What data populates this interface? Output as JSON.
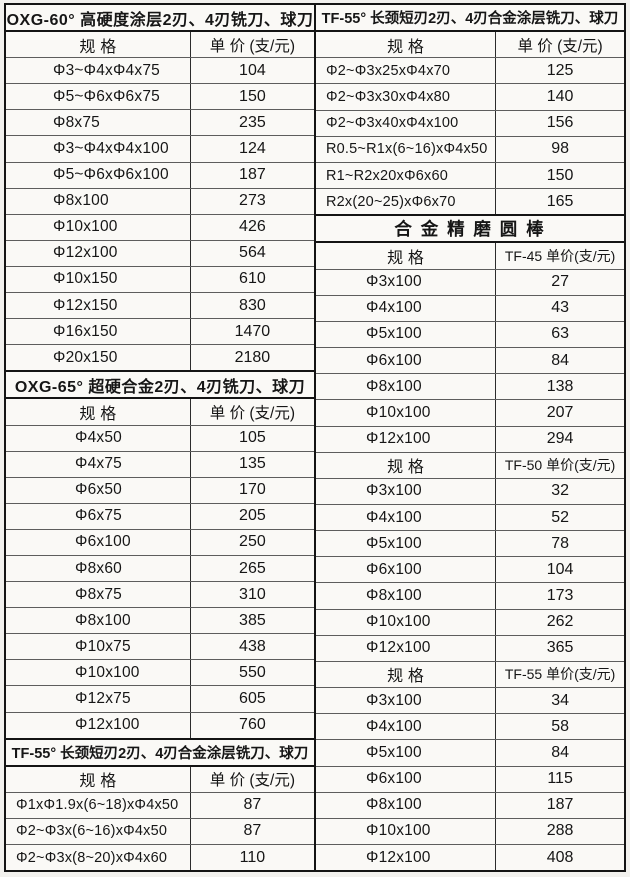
{
  "colors": {
    "paper": "#faf9f6",
    "heavy_line": "#141414",
    "light_line": "#5d5d5d",
    "text": "#161616"
  },
  "columns": [
    {
      "name": "left",
      "tables": [
        {
          "title": "OXG-60° 高硬度涂层2刃、4刃铣刀、球刀",
          "sections": [
            {
              "spec_header": "规  格",
              "price_header": "单 价 (支/元)",
              "rows": [
                [
                  "Φ3~Φ4xΦ4x75",
                  "104"
                ],
                [
                  "Φ5~Φ6xΦ6x75",
                  "150"
                ],
                [
                  "Φ8x75",
                  "235"
                ],
                [
                  "Φ3~Φ4xΦ4x100",
                  "124"
                ],
                [
                  "Φ5~Φ6xΦ6x100",
                  "187"
                ],
                [
                  "Φ8x100",
                  "273"
                ],
                [
                  "Φ10x100",
                  "426"
                ],
                [
                  "Φ12x100",
                  "564"
                ],
                [
                  "Φ10x150",
                  "610"
                ],
                [
                  "Φ12x150",
                  "830"
                ],
                [
                  "Φ16x150",
                  "1470"
                ],
                [
                  "Φ20x150",
                  "2180"
                ]
              ]
            }
          ]
        },
        {
          "title": "OXG-65° 超硬合金2刃、4刃铣刀、球刀",
          "sections": [
            {
              "spec_header": "规  格",
              "price_header": "单 价 (支/元)",
              "rows": [
                [
                  "Φ4x50",
                  "105"
                ],
                [
                  "Φ4x75",
                  "135"
                ],
                [
                  "Φ6x50",
                  "170"
                ],
                [
                  "Φ6x75",
                  "205"
                ],
                [
                  "Φ6x100",
                  "250"
                ],
                [
                  "Φ8x60",
                  "265"
                ],
                [
                  "Φ8x75",
                  "310"
                ],
                [
                  "Φ8x100",
                  "385"
                ],
                [
                  "Φ10x75",
                  "438"
                ],
                [
                  "Φ10x100",
                  "550"
                ],
                [
                  "Φ12x75",
                  "605"
                ],
                [
                  "Φ12x100",
                  "760"
                ]
              ]
            }
          ]
        },
        {
          "title": "TF-55° 长颈短刃2刃、4刃合金涂层铣刀、球刀",
          "sections": [
            {
              "spec_header": "规  格",
              "price_header": "单 价 (支/元)",
              "rows": [
                [
                  "Φ1xΦ1.9x(6~18)xΦ4x50",
                  "87"
                ],
                [
                  "Φ2~Φ3x(6~16)xΦ4x50",
                  "87"
                ],
                [
                  "Φ2~Φ3x(8~20)xΦ4x60",
                  "110"
                ]
              ]
            }
          ]
        }
      ]
    },
    {
      "name": "right",
      "tables": [
        {
          "title": "TF-55° 长颈短刃2刃、4刃合金涂层铣刀、球刀",
          "sections": [
            {
              "spec_header": "规  格",
              "price_header": "单 价 (支/元)",
              "rows": [
                [
                  "Φ2~Φ3x25xΦ4x70",
                  "125"
                ],
                [
                  "Φ2~Φ3x30xΦ4x80",
                  "140"
                ],
                [
                  "Φ2~Φ3x40xΦ4x100",
                  "156"
                ],
                [
                  "R0.5~R1x(6~16)xΦ4x50",
                  "98"
                ],
                [
                  "R1~R2x20xΦ6x60",
                  "150"
                ],
                [
                  "R2x(20~25)xΦ6x70",
                  "165"
                ]
              ]
            }
          ]
        },
        {
          "title": "合 金 精 磨 圆 棒",
          "sections": [
            {
              "spec_header": "规  格",
              "price_header": "TF-45 单价(支/元)",
              "rows": [
                [
                  "Φ3x100",
                  "27"
                ],
                [
                  "Φ4x100",
                  "43"
                ],
                [
                  "Φ5x100",
                  "63"
                ],
                [
                  "Φ6x100",
                  "84"
                ],
                [
                  "Φ8x100",
                  "138"
                ],
                [
                  "Φ10x100",
                  "207"
                ],
                [
                  "Φ12x100",
                  "294"
                ]
              ]
            },
            {
              "spec_header": "规  格",
              "price_header": "TF-50 单价(支/元)",
              "rows": [
                [
                  "Φ3x100",
                  "32"
                ],
                [
                  "Φ4x100",
                  "52"
                ],
                [
                  "Φ5x100",
                  "78"
                ],
                [
                  "Φ6x100",
                  "104"
                ],
                [
                  "Φ8x100",
                  "173"
                ],
                [
                  "Φ10x100",
                  "262"
                ],
                [
                  "Φ12x100",
                  "365"
                ]
              ]
            },
            {
              "spec_header": "规  格",
              "price_header": "TF-55 单价(支/元)",
              "rows": [
                [
                  "Φ3x100",
                  "34"
                ],
                [
                  "Φ4x100",
                  "58"
                ],
                [
                  "Φ5x100",
                  "84"
                ],
                [
                  "Φ6x100",
                  "115"
                ],
                [
                  "Φ8x100",
                  "187"
                ],
                [
                  "Φ10x100",
                  "288"
                ],
                [
                  "Φ12x100",
                  "408"
                ]
              ]
            }
          ]
        }
      ]
    }
  ]
}
